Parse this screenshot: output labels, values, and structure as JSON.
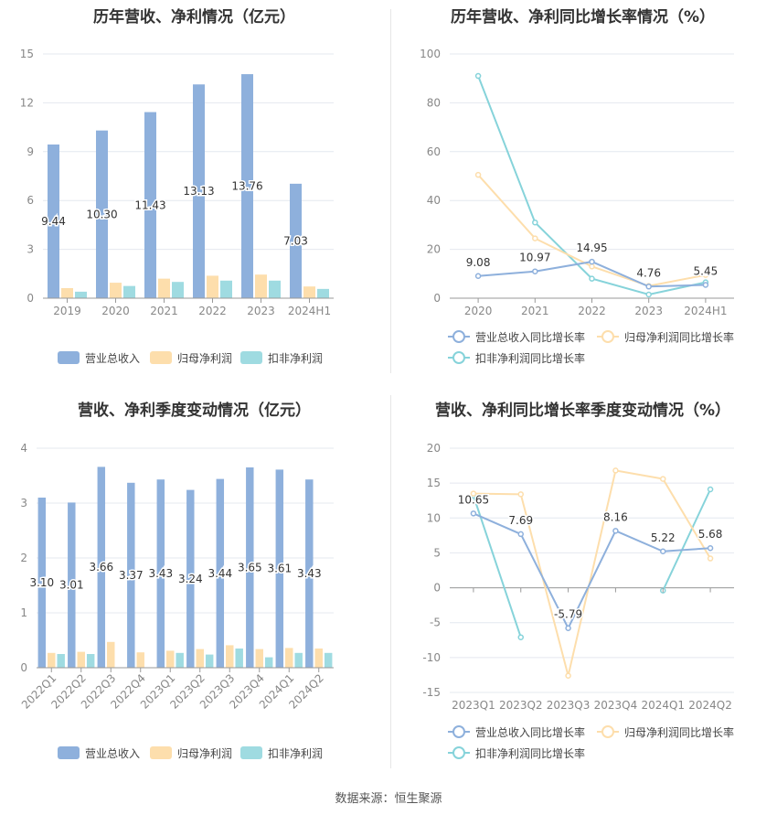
{
  "source": "数据来源：恒生聚源",
  "chart_data": [
    {
      "type": "bar",
      "title": "历年营收、净利情况（亿元）",
      "categories": [
        "2019",
        "2020",
        "2021",
        "2022",
        "2023",
        "2024H1"
      ],
      "ylim": [
        0,
        15
      ],
      "yticks": [
        0,
        3,
        6,
        9,
        12,
        15
      ],
      "series": [
        {
          "name": "营业总收入",
          "color": "#8eb0dc",
          "values": [
            9.44,
            10.3,
            11.43,
            13.13,
            13.76,
            7.03
          ],
          "labels": [
            "9.44",
            "10.30",
            "11.43",
            "13.13",
            "13.76",
            "7.03"
          ]
        },
        {
          "name": "归母净利润",
          "color": "#fddeac",
          "values": [
            0.62,
            0.95,
            1.2,
            1.38,
            1.45,
            0.72
          ]
        },
        {
          "name": "扣非净利润",
          "color": "#9fdbe1",
          "values": [
            0.4,
            0.75,
            1.0,
            1.08,
            1.08,
            0.57
          ]
        }
      ],
      "legend": "bottom",
      "grid": true
    },
    {
      "type": "line",
      "title": "历年营收、净利同比增长率情况（%）",
      "categories": [
        "2020",
        "2021",
        "2022",
        "2023",
        "2024H1"
      ],
      "ylim": [
        0,
        100
      ],
      "yticks": [
        0,
        20,
        40,
        60,
        80,
        100
      ],
      "series": [
        {
          "name": "营业总收入同比增长率",
          "color": "#8eb0dc",
          "values": [
            9.08,
            10.97,
            14.95,
            4.76,
            5.45
          ],
          "labels": [
            "9.08",
            "10.97",
            "14.95",
            "4.76",
            "5.45"
          ]
        },
        {
          "name": "归母净利润同比增长率",
          "color": "#fddeac",
          "values": [
            50.5,
            24.5,
            13.0,
            5.0,
            9.5
          ]
        },
        {
          "name": "扣非净利润同比增长率",
          "color": "#86d3da",
          "values": [
            91.0,
            31.0,
            8.0,
            1.5,
            6.5
          ]
        }
      ],
      "legend": "bottom",
      "grid": true
    },
    {
      "type": "bar",
      "title": "营收、净利季度变动情况（亿元）",
      "categories": [
        "2022Q1",
        "2022Q2",
        "2022Q3",
        "2022Q4",
        "2023Q1",
        "2023Q2",
        "2023Q3",
        "2023Q4",
        "2024Q1",
        "2024Q2"
      ],
      "ylim": [
        0,
        4
      ],
      "yticks": [
        0,
        1,
        2,
        3,
        4
      ],
      "series": [
        {
          "name": "营业总收入",
          "color": "#8eb0dc",
          "values": [
            3.1,
            3.01,
            3.66,
            3.37,
            3.43,
            3.24,
            3.44,
            3.65,
            3.61,
            3.43
          ],
          "labels": [
            "3.10",
            "3.01",
            "3.66",
            "3.37",
            "3.43",
            "3.24",
            "3.44",
            "3.65",
            "3.61",
            "3.43"
          ]
        },
        {
          "name": "归母净利润",
          "color": "#fddeac",
          "values": [
            0.27,
            0.29,
            0.47,
            0.28,
            0.31,
            0.34,
            0.41,
            0.34,
            0.36,
            0.35
          ]
        },
        {
          "name": "扣非净利润",
          "color": "#9fdbe1",
          "values": [
            0.25,
            0.25,
            null,
            null,
            0.27,
            0.24,
            0.35,
            0.19,
            0.27,
            0.27
          ]
        }
      ],
      "legend": "bottom",
      "grid": true
    },
    {
      "type": "line",
      "title": "营收、净利同比增长率季度变动情况（%）",
      "categories": [
        "2023Q1",
        "2023Q2",
        "2023Q3",
        "2023Q4",
        "2024Q1",
        "2024Q2"
      ],
      "ylim": [
        -15,
        20
      ],
      "yticks": [
        -15,
        -10,
        -5,
        0,
        5,
        10,
        15,
        20
      ],
      "series": [
        {
          "name": "营业总收入同比增长率",
          "color": "#8eb0dc",
          "values": [
            10.65,
            7.69,
            -5.79,
            8.16,
            5.22,
            5.68
          ],
          "labels": [
            "10.65",
            "7.69",
            "-5.79",
            "8.16",
            "5.22",
            "5.68"
          ]
        },
        {
          "name": "归母净利润同比增长率",
          "color": "#fddeac",
          "values": [
            13.5,
            13.4,
            -12.6,
            16.8,
            15.6,
            4.2
          ]
        },
        {
          "name": "扣非净利润同比增长率",
          "color": "#86d3da",
          "values": [
            13.2,
            -7.1,
            null,
            null,
            -0.4,
            14.1
          ]
        }
      ],
      "legend": "bottom",
      "grid": true
    }
  ]
}
